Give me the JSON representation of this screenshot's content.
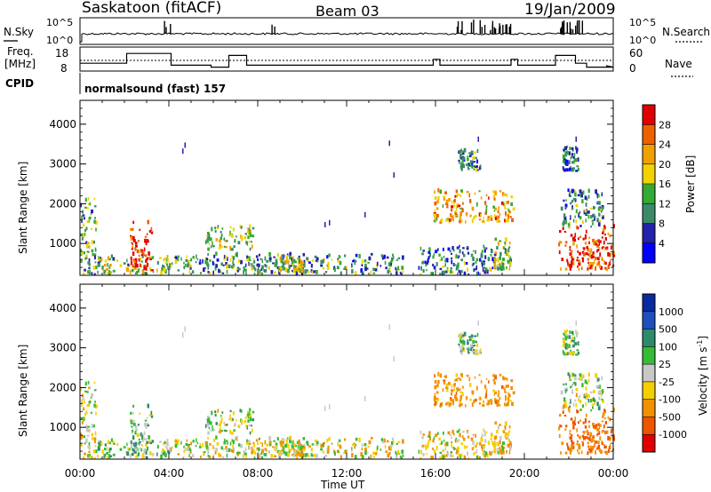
{
  "header": {
    "station": "Saskatoon (fitACF)",
    "beam": "Beam 03",
    "date": "19/Jan/2009"
  },
  "noise_panel": {
    "left_label": "N.Sky",
    "right_label": "N.Search",
    "left_ticks": [
      "10^5",
      "10^0"
    ],
    "right_ticks": [
      "10^5",
      "10^0"
    ]
  },
  "freq_panel": {
    "left_label_line1": "Freq.",
    "left_label_line2": "[MHz]",
    "left_ticks": [
      "18",
      "8"
    ],
    "right_label": "Nave",
    "right_ticks": [
      "60",
      "0"
    ],
    "freq_steps": [
      {
        "t0": 0.0,
        "t1": 2.1,
        "mhz": 12
      },
      {
        "t0": 2.1,
        "t1": 4.1,
        "mhz": 17
      },
      {
        "t0": 4.1,
        "t1": 5.9,
        "mhz": 11
      },
      {
        "t0": 5.9,
        "t1": 6.7,
        "mhz": 10
      },
      {
        "t0": 6.7,
        "t1": 7.5,
        "mhz": 16
      },
      {
        "t0": 7.5,
        "t1": 15.9,
        "mhz": 11
      },
      {
        "t0": 15.9,
        "t1": 16.2,
        "mhz": 14
      },
      {
        "t0": 16.2,
        "t1": 19.4,
        "mhz": 11
      },
      {
        "t0": 19.4,
        "t1": 19.7,
        "mhz": 14
      },
      {
        "t0": 19.7,
        "t1": 21.4,
        "mhz": 11
      },
      {
        "t0": 21.4,
        "t1": 22.3,
        "mhz": 16
      },
      {
        "t0": 22.3,
        "t1": 22.8,
        "mhz": 12
      },
      {
        "t0": 22.8,
        "t1": 24.0,
        "mhz": 10
      }
    ]
  },
  "cpid": {
    "label": "CPID",
    "value": "normalsound (fast) 157"
  },
  "power_panel": {
    "ylabel": "Slant Range [km]",
    "yticks": [
      "4000",
      "3000",
      "2000",
      "1000"
    ],
    "colorbar_label": "Power [dB]",
    "colorbar_ticks": [
      "28",
      "24",
      "20",
      "16",
      "12",
      "8",
      "4"
    ],
    "colors": [
      "#0000ff",
      "#2222aa",
      "#3a8a6a",
      "#33aa33",
      "#f2d200",
      "#f0a000",
      "#ee6000",
      "#e00000"
    ]
  },
  "velocity_panel": {
    "ylabel": "Slant Range [km]",
    "yticks": [
      "4000",
      "3000",
      "2000",
      "1000"
    ],
    "colorbar_label": "Velocity [m s",
    "colorbar_exp": "-1",
    "colorbar_label_end": "]",
    "colorbar_ticks": [
      "1000",
      "500",
      "100",
      "25",
      "-25",
      "-100",
      "-500",
      "-1000"
    ],
    "colors": [
      "#0a2aa0",
      "#1f4fbf",
      "#2e8a6a",
      "#36bb36",
      "#c8c8c8",
      "#f5d000",
      "#f29000",
      "#ee5500",
      "#e00000"
    ]
  },
  "xaxis": {
    "label": "Time UT",
    "ticks": [
      "00:00",
      "04:00",
      "08:00",
      "12:00",
      "16:00",
      "20:00",
      "00:00"
    ]
  },
  "chart_data": {
    "type": "heatmap",
    "title": "Saskatoon (fitACF) Beam 03 19/Jan/2009",
    "xlabel": "Time UT",
    "ylabel": "Slant Range [km]",
    "xlim_hours": [
      0,
      24
    ],
    "ylim_km": [
      200,
      4600
    ],
    "power_range_db": [
      0,
      30
    ],
    "velocity_range_ms": [
      -1000,
      1000
    ],
    "grid": false,
    "scatter_regions": [
      {
        "t0": 0.0,
        "t1": 0.7,
        "r0": 200,
        "r1": 2100,
        "power": 12,
        "velocity": -30
      },
      {
        "t0": 0.7,
        "t1": 4.0,
        "r0": 200,
        "r1": 650,
        "power": 14,
        "velocity": 40
      },
      {
        "t0": 2.2,
        "t1": 3.2,
        "r0": 300,
        "r1": 1500,
        "power": 27,
        "velocity": 60
      },
      {
        "t0": 4.0,
        "t1": 14.5,
        "r0": 200,
        "r1": 700,
        "power": 10,
        "velocity": -40
      },
      {
        "t0": 5.6,
        "t1": 7.8,
        "r0": 800,
        "r1": 1400,
        "power": 14,
        "velocity": 20
      },
      {
        "t0": 8.8,
        "t1": 10.0,
        "r0": 250,
        "r1": 600,
        "power": 16,
        "velocity": -40
      },
      {
        "t0": 15.2,
        "t1": 18.6,
        "r0": 200,
        "r1": 900,
        "power": 9,
        "velocity": -60
      },
      {
        "t0": 15.9,
        "t1": 19.5,
        "r0": 1500,
        "r1": 2300,
        "power": 20,
        "velocity": -200
      },
      {
        "t0": 17.0,
        "t1": 18.0,
        "r0": 2800,
        "r1": 3300,
        "power": 10,
        "velocity": 50
      },
      {
        "t0": 18.6,
        "t1": 19.4,
        "r0": 300,
        "r1": 1100,
        "power": 14,
        "velocity": -80
      },
      {
        "t0": 21.5,
        "t1": 24.0,
        "r0": 300,
        "r1": 1400,
        "power": 26,
        "velocity": -300
      },
      {
        "t0": 21.6,
        "t1": 23.5,
        "r0": 1400,
        "r1": 2300,
        "power": 10,
        "velocity": 20
      },
      {
        "t0": 21.7,
        "t1": 22.4,
        "r0": 2800,
        "r1": 3400,
        "power": 8,
        "velocity": 30
      }
    ]
  }
}
